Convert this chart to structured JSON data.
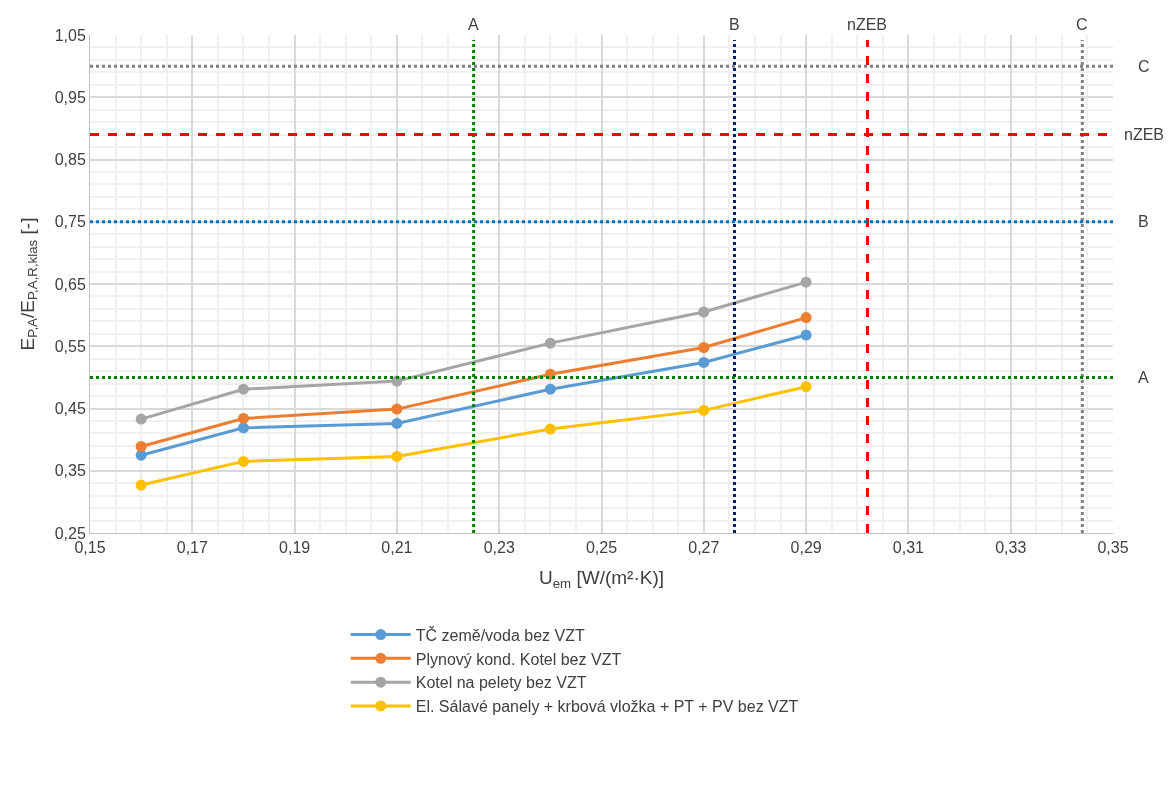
{
  "chart_data": {
    "type": "line",
    "xlabel": "U$_{em}$ [W/(m²·K)]",
    "ylabel": "E$_{P,A}$/E$_{P,A,R,klas}$ [-]",
    "x": [
      0.16,
      0.18,
      0.21,
      0.24,
      0.27,
      0.29
    ],
    "series": [
      {
        "name": "TČ země/voda bez VZT",
        "color": "#5b9bd5",
        "values": [
          0.375,
          0.419,
          0.426,
          0.481,
          0.524,
          0.568
        ]
      },
      {
        "name": "Plynový kond. Kotel bez VZT",
        "color": "#ed7d31",
        "values": [
          0.389,
          0.434,
          0.449,
          0.505,
          0.548,
          0.596
        ]
      },
      {
        "name": "Kotel na pelety bez VZT",
        "color": "#a5a5a5",
        "values": [
          0.433,
          0.481,
          0.494,
          0.555,
          0.605,
          0.653
        ]
      },
      {
        "name": "El. Sálavé panely + krbová vložka + PT + PV bez VZT",
        "color": "#ffc000",
        "values": [
          0.327,
          0.365,
          0.373,
          0.417,
          0.447,
          0.485
        ]
      }
    ],
    "xlim": [
      0.15,
      0.35
    ],
    "xticks": [
      {
        "value": 0.15,
        "label": "0,15"
      },
      {
        "value": 0.17,
        "label": "0,17"
      },
      {
        "value": 0.19,
        "label": "0,19"
      },
      {
        "value": 0.21,
        "label": "0,21"
      },
      {
        "value": 0.23,
        "label": "0,23"
      },
      {
        "value": 0.25,
        "label": "0,25"
      },
      {
        "value": 0.27,
        "label": "0,27"
      },
      {
        "value": 0.29,
        "label": "0,29"
      },
      {
        "value": 0.31,
        "label": "0,31"
      },
      {
        "value": 0.33,
        "label": "0,33"
      },
      {
        "value": 0.35,
        "label": "0,35"
      }
    ],
    "ylim": [
      0.25,
      1.05
    ],
    "yticks": [
      {
        "value": 0.25,
        "label": "0,25"
      },
      {
        "value": 0.35,
        "label": "0,35"
      },
      {
        "value": 0.45,
        "label": "0,45"
      },
      {
        "value": 0.55,
        "label": "0,55"
      },
      {
        "value": 0.65,
        "label": "0,65"
      },
      {
        "value": 0.75,
        "label": "0,75"
      },
      {
        "value": 0.85,
        "label": "0,85"
      },
      {
        "value": 0.95,
        "label": "0,95"
      },
      {
        "value": 1.05,
        "label": "1,05"
      }
    ],
    "ref_lines": [
      {
        "axis": "x",
        "value": 0.225,
        "label": "A",
        "color": "#008000",
        "line_style": "dotted"
      },
      {
        "axis": "x",
        "value": 0.276,
        "label": "B",
        "color": "#002060",
        "line_style": "dotted"
      },
      {
        "axis": "x",
        "value": 0.302,
        "label": "nZEB",
        "color": "#ff0000",
        "line_style": "dashed"
      },
      {
        "axis": "x",
        "value": 0.344,
        "label": "C",
        "color": "#808080",
        "line_style": "dotted"
      },
      {
        "axis": "y",
        "value": 1.0,
        "label": "C",
        "color": "#808080",
        "line_style": "dotted"
      },
      {
        "axis": "y",
        "value": 0.89,
        "label": "nZEB",
        "color": "#ff0000",
        "line_style": "dashed"
      },
      {
        "axis": "y",
        "value": 0.75,
        "label": "B",
        "color": "#0070c0",
        "line_style": "dotted"
      },
      {
        "axis": "y",
        "value": 0.5,
        "label": "A",
        "color": "#008000",
        "line_style": "dotted"
      }
    ],
    "grid": true,
    "legend": "bottom",
    "marker": "circle",
    "line_style": "solid"
  }
}
